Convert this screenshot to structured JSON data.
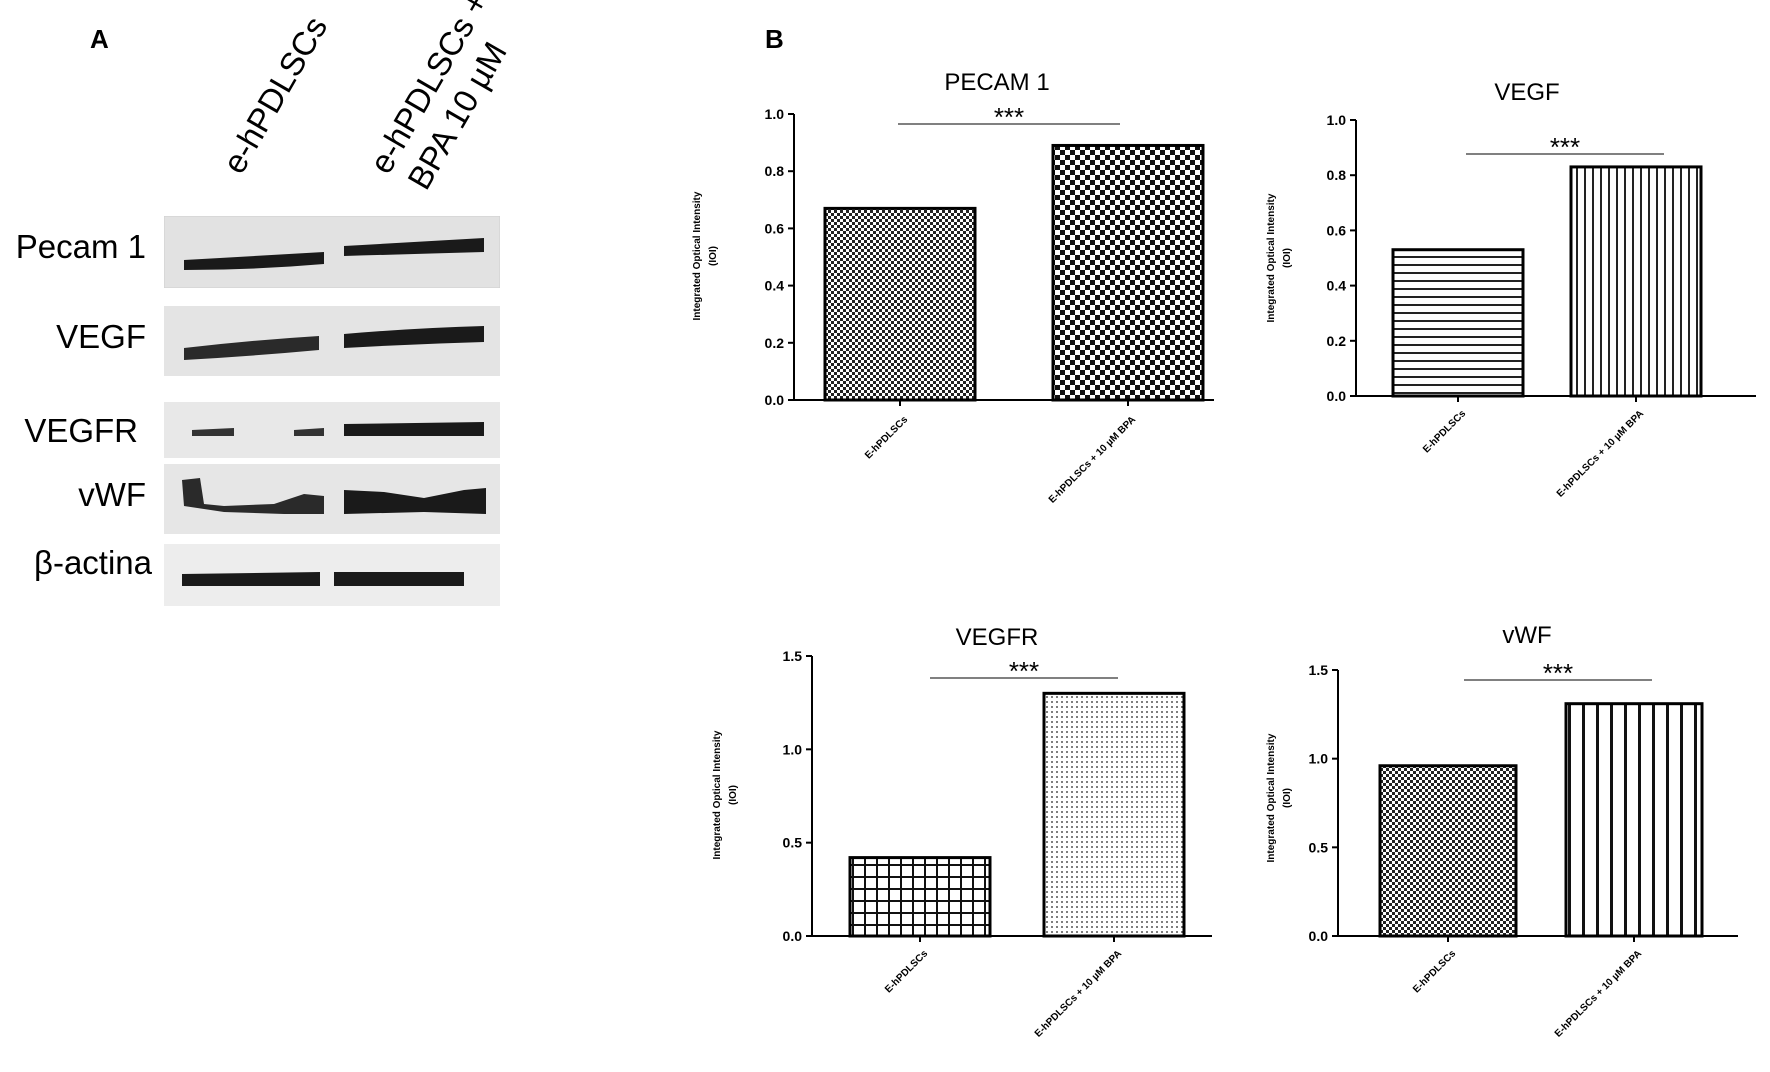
{
  "panel_a": {
    "letter": "A",
    "lanes": [
      "e-hPDLSCs",
      "e-hPDLSCs +",
      "BPA 10 µM"
    ],
    "proteins": [
      "Pecam 1",
      "VEGF",
      "VEGFR",
      "vWF",
      "β-actina"
    ]
  },
  "panel_b": {
    "letter": "B"
  },
  "colors": {
    "bar_stroke": "#000000",
    "blot_bg": "#e6e6e6",
    "band": "#1a1a1a"
  },
  "chart_data": [
    {
      "type": "bar",
      "title": "PECAM 1",
      "ylabel": "Integrated Optical Intensity (IOI)",
      "categories": [
        "E-hPDLSCs",
        "E-hPDLSCs + 10 µM BPA"
      ],
      "values": [
        0.67,
        0.89
      ],
      "ylim": [
        0,
        1.0
      ],
      "yticks": [
        "0.0",
        "0.2",
        "0.4",
        "0.6",
        "0.8",
        "1.0"
      ],
      "significance": "***",
      "patterns": [
        "fine-check",
        "coarse-check"
      ]
    },
    {
      "type": "bar",
      "title": "VEGF",
      "ylabel": "Integrated Optical Intensity (IOI)",
      "categories": [
        "E-hPDLSCs",
        "E-hPDLSCs + 10 µM BPA"
      ],
      "values": [
        0.53,
        0.83
      ],
      "ylim": [
        0,
        1.0
      ],
      "yticks": [
        "0.0",
        "0.2",
        "0.4",
        "0.6",
        "0.8",
        "1.0"
      ],
      "significance": "***",
      "patterns": [
        "horizontal-lines",
        "vertical-lines-fine"
      ]
    },
    {
      "type": "bar",
      "title": "VEGFR",
      "ylabel": "Integrated Optical Intensity (IOI)",
      "categories": [
        "E-hPDLSCs",
        "E-hPDLSCs + 10 µM BPA"
      ],
      "values": [
        0.42,
        1.3
      ],
      "ylim": [
        0,
        1.5
      ],
      "yticks": [
        "0.0",
        "0.5",
        "1.0",
        "1.5"
      ],
      "significance": "***",
      "patterns": [
        "grid",
        "dots"
      ]
    },
    {
      "type": "bar",
      "title": "vWF",
      "ylabel": "Integrated Optical Intensity (IOI)",
      "categories": [
        "E-hPDLSCs",
        "E-hPDLSCs + 10 µM BPA"
      ],
      "values": [
        0.96,
        1.31
      ],
      "ylim": [
        0,
        1.5
      ],
      "yticks": [
        "0.0",
        "0.5",
        "1.0",
        "1.5"
      ],
      "significance": "***",
      "patterns": [
        "fine-check",
        "vertical-lines-coarse"
      ]
    }
  ]
}
